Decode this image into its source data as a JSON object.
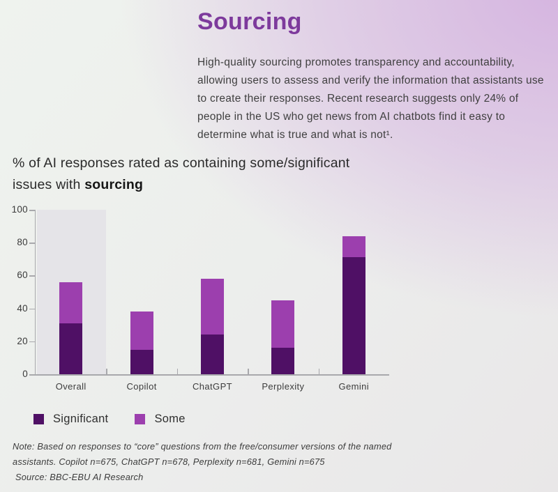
{
  "page": {
    "title": "Sourcing",
    "intro": "High-quality sourcing promotes transparency and accountability, allowing users to assess and verify the information that assistants use to create their responses. Recent research suggests only 24% of people in the US who get news from AI chatbots find it easy to determine what is true and what is not¹."
  },
  "chart_heading": {
    "line1": "% of AI responses rated as containing some/significant",
    "line2_prefix": "issues with ",
    "line2_bold": "sourcing"
  },
  "chart_data": {
    "type": "bar",
    "stacked": true,
    "categories": [
      "Overall",
      "Copilot",
      "ChatGPT",
      "Perplexity",
      "Gemini"
    ],
    "series": [
      {
        "name": "Significant",
        "color": "#4f1065",
        "values": [
          31,
          15,
          24,
          16,
          71
        ]
      },
      {
        "name": "Some",
        "color": "#9c3fae",
        "values": [
          25,
          23,
          34,
          29,
          13
        ]
      }
    ],
    "totals": [
      56,
      38,
      58,
      45,
      84
    ],
    "title": "% of AI responses rated as containing some/significant issues with sourcing",
    "xlabel": "",
    "ylabel": "",
    "ylim": [
      0,
      100
    ],
    "yticks": [
      0,
      20,
      40,
      60,
      80,
      100
    ],
    "grid": false,
    "highlight_category": "Overall",
    "legend_position": "bottom-left"
  },
  "legend": {
    "items": [
      {
        "label": "Significant",
        "color": "#4f1065"
      },
      {
        "label": "Some",
        "color": "#9c3fae"
      }
    ]
  },
  "notes": {
    "line1": "Note: Based on responses to “core” questions from the free/consumer versions of the named",
    "line2": "assistants. Copilot n=675, ChatGPT n=678, Perplexity n=681, Gemini n=675",
    "line3": "Source: BBC-EBU AI Research"
  },
  "colors": {
    "title_purple": "#7d3a9c",
    "significant": "#4f1065",
    "some": "#9c3fae",
    "highlight_column": "#e5e4e8",
    "axis": "#a8a8ac",
    "body_text": "#3f3f3f"
  }
}
